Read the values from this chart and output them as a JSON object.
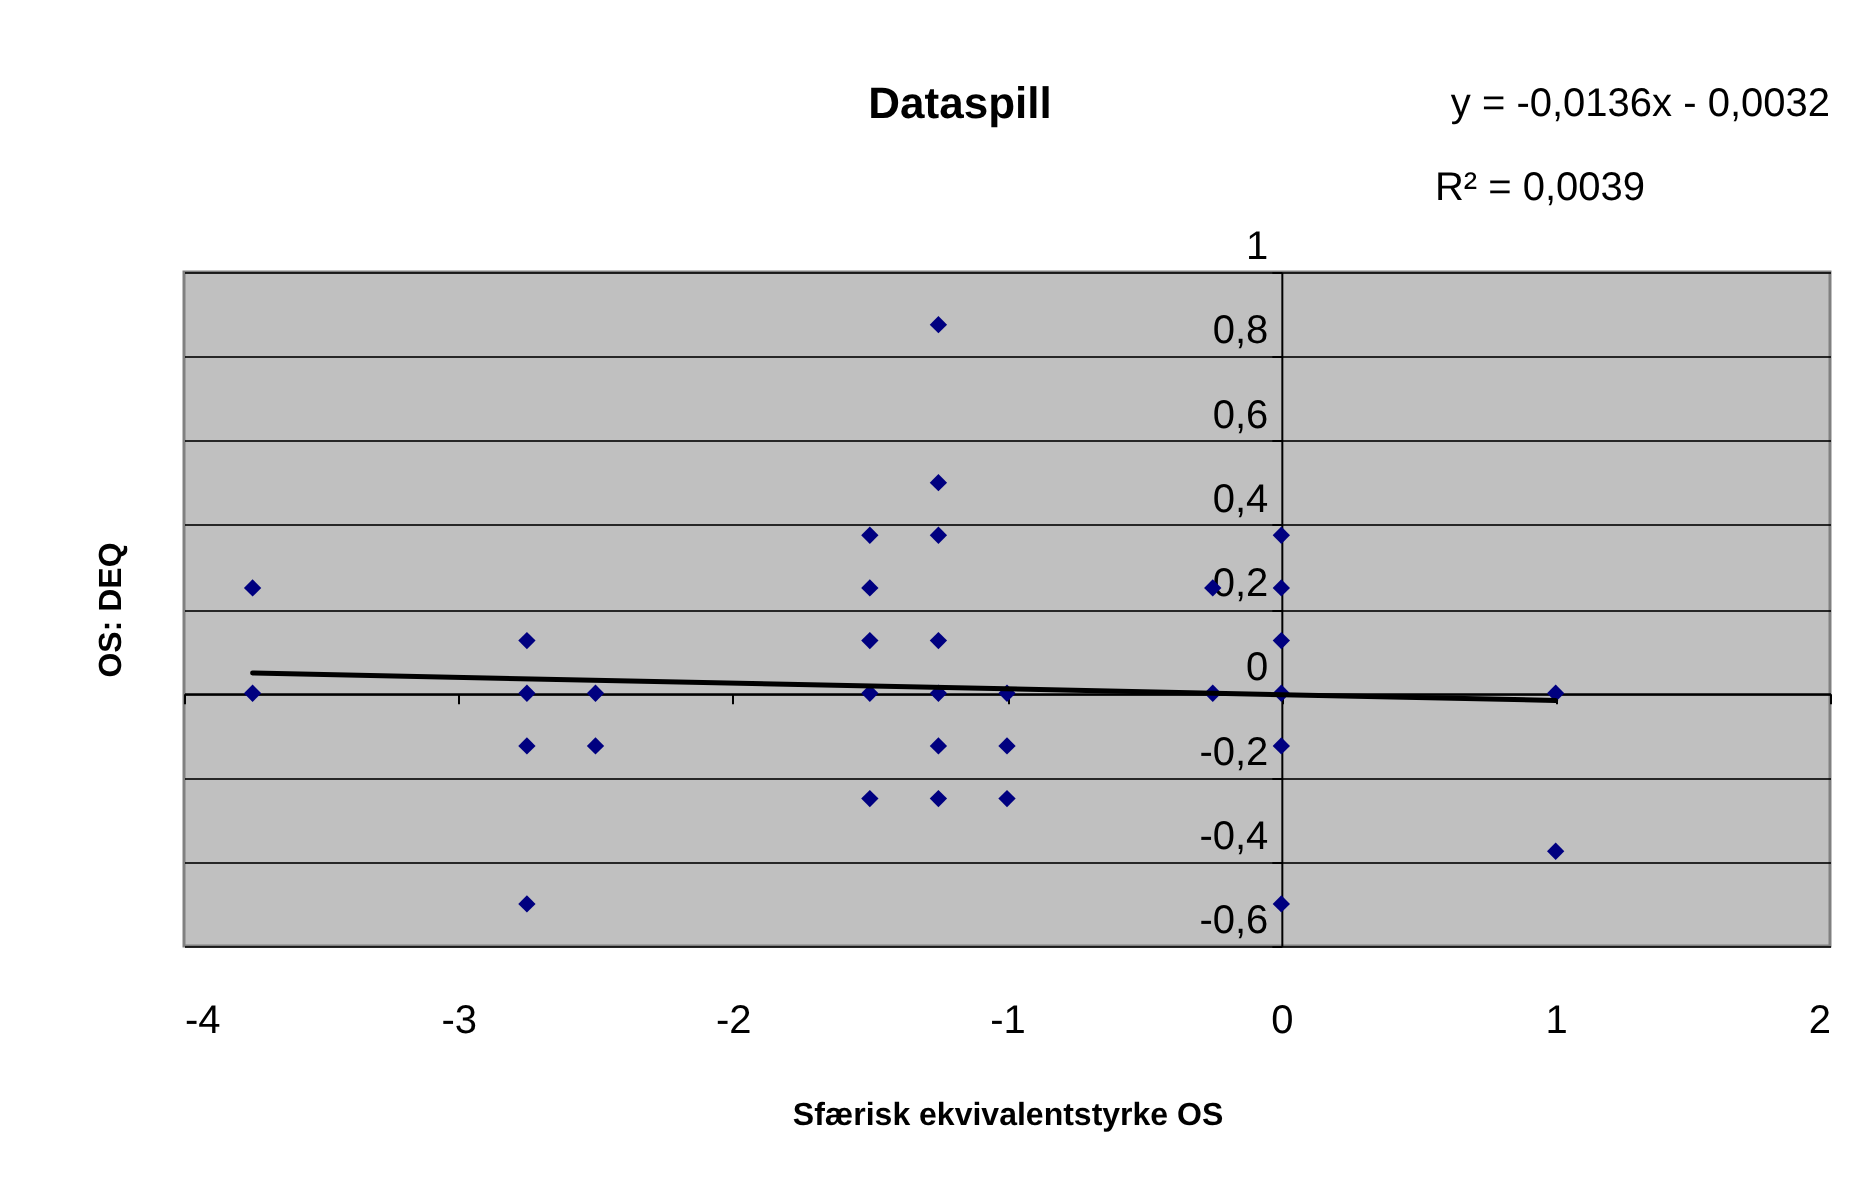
{
  "chart_data": {
    "type": "scatter",
    "title": "Dataspill",
    "xlabel": "Sfærisk ekvivalentstyrke OS",
    "ylabel": "OS: DEQ",
    "annotations": [
      "y = -0,0136x - 0,0032",
      "R² = 0,0039"
    ],
    "xlim": [
      -4,
      2
    ],
    "xticks": [
      -4,
      -3,
      -2,
      -1,
      0,
      1,
      2
    ],
    "ylim": [
      -0.6,
      1
    ],
    "yticks": [
      {
        "value": -0.6,
        "label": "-0,6"
      },
      {
        "value": -0.4,
        "label": "-0,4"
      },
      {
        "value": -0.2,
        "label": "-0,2"
      },
      0,
      {
        "value": 0.2,
        "label": "0,2"
      },
      {
        "value": 0.4,
        "label": "0,4"
      },
      {
        "value": 0.6,
        "label": "0,6"
      },
      {
        "value": 0.8,
        "label": "0,8"
      },
      1
    ],
    "grid": "y",
    "series": [
      {
        "color": "#000080",
        "marker": "diamond",
        "x": [
          -3.75,
          -3.75,
          -2.75,
          -2.75,
          -2.75,
          -2.75,
          -2.5,
          -2.5,
          -1.5,
          -1.5,
          -1.5,
          -1.5,
          -1.5,
          -1.25,
          -1.25,
          -1.25,
          -1.25,
          -1.25,
          -1.25,
          -1.25,
          -1,
          -1,
          -1,
          -0.25,
          -0.25,
          0,
          0,
          0,
          0,
          0,
          0,
          1,
          1
        ],
        "values": [
          0.25,
          0,
          0.125,
          0,
          -0.125,
          -0.5,
          0,
          -0.125,
          0.375,
          0.25,
          0.125,
          0,
          -0.25,
          0.875,
          0.5,
          0.375,
          0.125,
          0,
          -0.125,
          -0.25,
          0,
          -0.125,
          -0.25,
          0.25,
          0,
          0.375,
          0.25,
          0.125,
          0,
          -0.125,
          -0.5,
          0,
          -0.375
        ]
      },
      {
        "type": "line",
        "color": "#000000",
        "line_style": "solid",
        "x": [
          -3.75,
          1
        ],
        "values": [
          0.048,
          -0.017
        ]
      }
    ]
  }
}
